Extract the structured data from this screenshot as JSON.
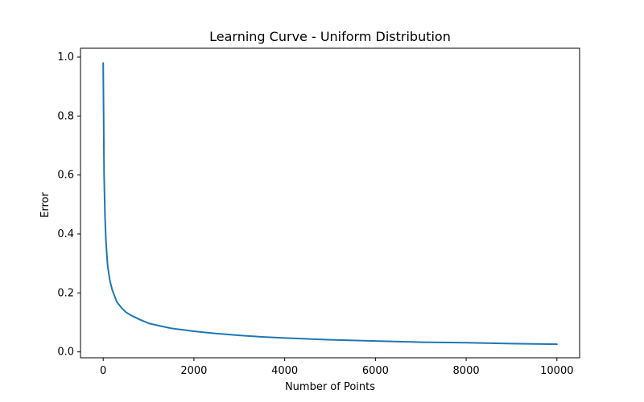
{
  "chart_data": {
    "type": "line",
    "title": "Learning Curve - Uniform Distribution",
    "xlabel": "Number of Points",
    "ylabel": "Error",
    "xlim": [
      -500,
      10500
    ],
    "ylim": [
      -0.02,
      1.03
    ],
    "xticks": [
      0,
      2000,
      4000,
      6000,
      8000,
      10000
    ],
    "yticks": [
      0.0,
      0.2,
      0.4,
      0.6,
      0.8,
      1.0
    ],
    "xtick_labels": [
      "0",
      "2000",
      "4000",
      "6000",
      "8000",
      "10000"
    ],
    "ytick_labels": [
      "0.0",
      "0.2",
      "0.4",
      "0.6",
      "0.8",
      "1.0"
    ],
    "grid": false,
    "series": [
      {
        "color": "#1f77b4",
        "x": [
          0,
          20,
          40,
          60,
          80,
          100,
          150,
          200,
          250,
          300,
          400,
          500,
          600,
          800,
          1000,
          1250,
          1500,
          2000,
          2500,
          3000,
          3500,
          4000,
          5000,
          6000,
          7000,
          8000,
          9000,
          10000
        ],
        "y": [
          0.98,
          0.6,
          0.46,
          0.38,
          0.33,
          0.29,
          0.24,
          0.21,
          0.19,
          0.17,
          0.15,
          0.135,
          0.125,
          0.11,
          0.097,
          0.088,
          0.08,
          0.07,
          0.062,
          0.056,
          0.051,
          0.047,
          0.041,
          0.037,
          0.033,
          0.031,
          0.028,
          0.026
        ]
      }
    ]
  }
}
